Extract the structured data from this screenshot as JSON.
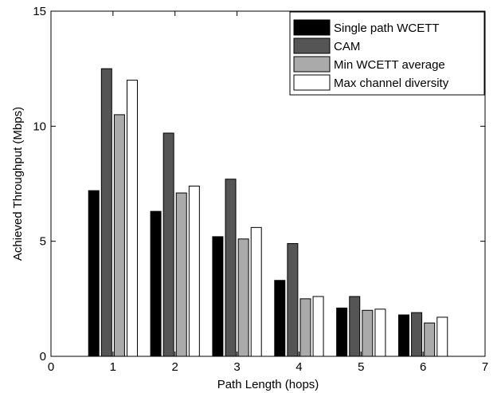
{
  "chart_data": {
    "type": "bar",
    "title": "",
    "xlabel": "Path Length (hops)",
    "ylabel": "Achieved Throughput (Mbps)",
    "xlim": [
      0,
      7
    ],
    "ylim": [
      0,
      15
    ],
    "xticks": [
      0,
      1,
      2,
      3,
      4,
      5,
      6,
      7
    ],
    "yticks": [
      0,
      5,
      10,
      15
    ],
    "x": [
      1,
      2,
      3,
      4,
      5,
      6
    ],
    "grid": false,
    "legend_position": "top-right",
    "series": [
      {
        "name": "Single path WCETT",
        "color": "#000000",
        "values": [
          7.2,
          6.3,
          5.2,
          3.3,
          2.1,
          1.8
        ]
      },
      {
        "name": "CAM",
        "color": "#555555",
        "values": [
          12.5,
          9.7,
          7.7,
          4.9,
          2.6,
          1.9
        ]
      },
      {
        "name": "Min WCETT average",
        "color": "#aaaaaa",
        "values": [
          10.5,
          7.1,
          5.1,
          2.5,
          2.0,
          1.45
        ]
      },
      {
        "name": "Max channel diversity",
        "color": "#ffffff",
        "values": [
          12.0,
          7.4,
          5.6,
          2.6,
          2.05,
          1.7
        ]
      }
    ]
  }
}
